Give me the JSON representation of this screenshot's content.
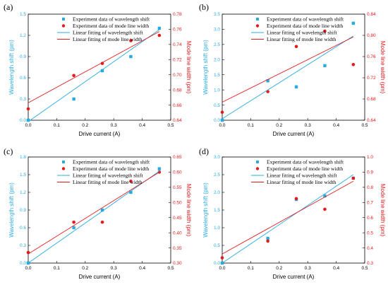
{
  "colors": {
    "wavelength": "#29abe2",
    "linewidth": "#e41a1c",
    "axis": "#000000"
  },
  "chart_data": [
    {
      "type": "scatter",
      "panel_label": "(a)",
      "xlabel": "Drive current (A)",
      "ylabel_left": "Wavelength shift (pm)",
      "ylabel_right": "Mode line width (pm)",
      "xlim": [
        0,
        0.5
      ],
      "xticks": [
        "0.0",
        "0.1",
        "0.2",
        "0.3",
        "0.4",
        "0.5"
      ],
      "ylim_left": [
        0,
        1.5
      ],
      "yticks_left": [
        "0.0",
        "0.3",
        "0.6",
        "0.9",
        "1.2",
        "1.5"
      ],
      "ylim_right": [
        0.64,
        0.78
      ],
      "yticks_right": [
        "0.64",
        "0.66",
        "0.68",
        "0.70",
        "0.72",
        "0.74",
        "0.76",
        "0.78"
      ],
      "legend": [
        "Experiment data of wavelength shift",
        "Experiment data of mode line width",
        "Linear fitting of wavelength shift",
        "Linear fitting of mode line width"
      ],
      "series": [
        {
          "name": "Experiment data of wavelength shift",
          "axis": "left",
          "kind": "points",
          "marker": "square",
          "x": [
            0.0,
            0.16,
            0.26,
            0.36,
            0.46
          ],
          "y": [
            0.0,
            0.3,
            0.7,
            0.9,
            1.3
          ]
        },
        {
          "name": "Experiment data of mode line width",
          "axis": "right",
          "kind": "points",
          "marker": "circle",
          "x": [
            0.0,
            0.16,
            0.26,
            0.36,
            0.46
          ],
          "y": [
            0.655,
            0.699,
            0.715,
            0.745,
            0.752
          ]
        },
        {
          "name": "Linear fitting of wavelength shift",
          "axis": "left",
          "kind": "line",
          "x": [
            0.0,
            0.46
          ],
          "y": [
            -0.02,
            1.28
          ]
        },
        {
          "name": "Linear fitting of mode line width",
          "axis": "right",
          "kind": "line",
          "x": [
            0.0,
            0.46
          ],
          "y": [
            0.663,
            0.757
          ]
        }
      ]
    },
    {
      "type": "scatter",
      "panel_label": "(b)",
      "xlabel": "Drive current (A)",
      "ylabel_left": "Wavelength shift (pm)",
      "ylabel_right": "Mode line width (pm)",
      "xlim": [
        0,
        0.5
      ],
      "xticks": [
        "0.0",
        "0.1",
        "0.2",
        "0.3",
        "0.4",
        "0.5"
      ],
      "ylim_left": [
        0,
        3.5
      ],
      "yticks_left": [
        "0.0",
        "0.5",
        "1.0",
        "1.5",
        "2.0",
        "2.5",
        "3.0",
        "3.5"
      ],
      "ylim_right": [
        0.64,
        0.84
      ],
      "yticks_right": [
        "0.64",
        "0.68",
        "0.72",
        "0.76",
        "0.80",
        "0.84"
      ],
      "legend": [
        "Experiment data of wavelength shift",
        "Experiment data of mode line width",
        "Linear fitting of wavelength shift",
        "Linear fitting of mode line width"
      ],
      "series": [
        {
          "name": "Experiment data of wavelength shift",
          "axis": "left",
          "kind": "points",
          "marker": "square",
          "x": [
            0.0,
            0.16,
            0.26,
            0.36,
            0.46
          ],
          "y": [
            0.0,
            1.3,
            1.1,
            1.8,
            3.2
          ]
        },
        {
          "name": "Experiment data of mode line width",
          "axis": "right",
          "kind": "points",
          "marker": "circle",
          "x": [
            0.0,
            0.16,
            0.26,
            0.36,
            0.46
          ],
          "y": [
            0.655,
            0.694,
            0.779,
            0.808,
            0.745
          ]
        },
        {
          "name": "Linear fitting of wavelength shift",
          "axis": "left",
          "kind": "line",
          "x": [
            0.0,
            0.46
          ],
          "y": [
            0.05,
            2.78
          ]
        },
        {
          "name": "Linear fitting of mode line width",
          "axis": "right",
          "kind": "line",
          "x": [
            0.0,
            0.46
          ],
          "y": [
            0.674,
            0.797
          ]
        }
      ]
    },
    {
      "type": "scatter",
      "panel_label": "(c)",
      "xlabel": "Drive current (A)",
      "ylabel_left": "Wavelength shift (pm)",
      "ylabel_right": "Mode line width (pm)",
      "xlim": [
        0,
        0.5
      ],
      "xticks": [
        "0.0",
        "0.1",
        "0.2",
        "0.3",
        "0.4",
        "0.5"
      ],
      "ylim_left": [
        0,
        1.8
      ],
      "yticks_left": [
        "0.0",
        "0.3",
        "0.6",
        "0.9",
        "1.2",
        "1.5",
        "1.8"
      ],
      "ylim_right": [
        0.3,
        0.65
      ],
      "yticks_right": [
        "0.30",
        "0.35",
        "0.40",
        "0.45",
        "0.50",
        "0.55",
        "0.60",
        "0.65"
      ],
      "legend": [
        "Experiment data of wavelength shift",
        "Experiment data of mode line width",
        "Linear fitting of wavelength shift",
        "Linear fitting of mode line width"
      ],
      "series": [
        {
          "name": "Experiment data of wavelength shift",
          "axis": "left",
          "kind": "points",
          "marker": "square",
          "x": [
            0.0,
            0.16,
            0.26,
            0.36,
            0.46
          ],
          "y": [
            0.0,
            0.6,
            0.9,
            1.2,
            1.6
          ]
        },
        {
          "name": "Experiment data of mode line width",
          "axis": "right",
          "kind": "points",
          "marker": "circle",
          "x": [
            0.0,
            0.16,
            0.26,
            0.36,
            0.46
          ],
          "y": [
            0.335,
            0.435,
            0.435,
            0.57,
            0.6
          ]
        },
        {
          "name": "Linear fitting of wavelength shift",
          "axis": "left",
          "kind": "line",
          "x": [
            0.0,
            0.46
          ],
          "y": [
            0.0,
            1.56
          ]
        },
        {
          "name": "Linear fitting of mode line width",
          "axis": "right",
          "kind": "line",
          "x": [
            0.0,
            0.46
          ],
          "y": [
            0.33,
            0.6
          ]
        }
      ]
    },
    {
      "type": "scatter",
      "panel_label": "(d)",
      "xlabel": "Drive current (A)",
      "ylabel_left": "Wavelength shift (pm)",
      "ylabel_right": "Mode line width (pm)",
      "xlim": [
        0,
        0.5
      ],
      "xticks": [
        "0.0",
        "0.1",
        "0.2",
        "0.3",
        "0.4",
        "0.5"
      ],
      "ylim_left": [
        0,
        3.0
      ],
      "yticks_left": [
        "0.0",
        "0.5",
        "1.0",
        "1.5",
        "2.0",
        "2.5",
        "3.0"
      ],
      "ylim_right": [
        0.3,
        1.0
      ],
      "yticks_right": [
        "0.3",
        "0.4",
        "0.5",
        "0.6",
        "0.7",
        "0.8",
        "0.9",
        "1.0"
      ],
      "legend": [
        "Experiment data of wavelength shift",
        "Experiment data of mode line width",
        "Linear fitting of wavelength shift",
        "Linear fitting of mode line width"
      ],
      "series": [
        {
          "name": "Experiment data of wavelength shift",
          "axis": "left",
          "kind": "points",
          "marker": "square",
          "x": [
            0.0,
            0.16,
            0.26,
            0.36,
            0.46
          ],
          "y": [
            0.0,
            0.7,
            1.8,
            1.9,
            2.4
          ]
        },
        {
          "name": "Experiment data of mode line width",
          "axis": "right",
          "kind": "points",
          "marker": "circle",
          "x": [
            0.0,
            0.16,
            0.26,
            0.36,
            0.46
          ],
          "y": [
            0.335,
            0.445,
            0.725,
            0.655,
            0.86
          ]
        },
        {
          "name": "Linear fitting of wavelength shift",
          "axis": "left",
          "kind": "line",
          "x": [
            0.0,
            0.46
          ],
          "y": [
            0.0,
            2.5
          ]
        },
        {
          "name": "Linear fitting of mode line width",
          "axis": "right",
          "kind": "line",
          "x": [
            0.0,
            0.46
          ],
          "y": [
            0.36,
            0.84
          ]
        }
      ]
    }
  ]
}
